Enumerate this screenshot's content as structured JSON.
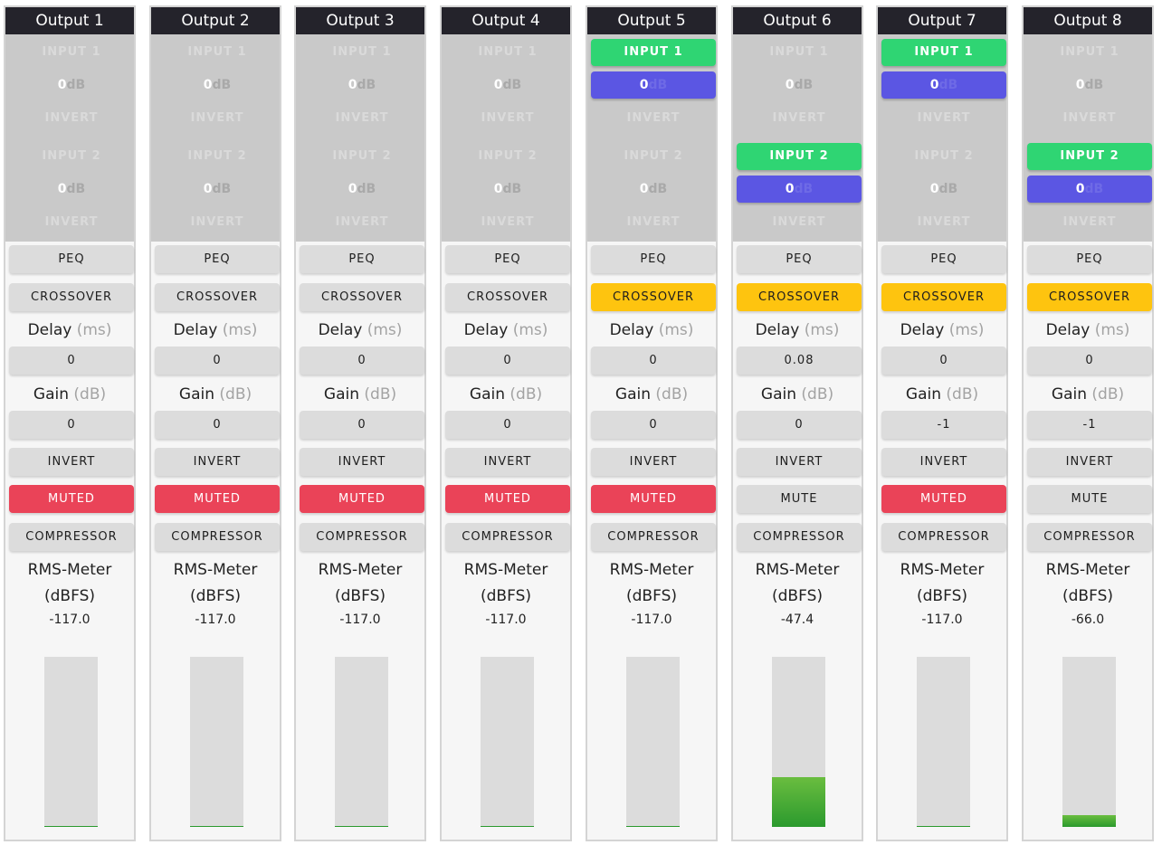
{
  "labels": {
    "input1": "INPUT 1",
    "input2": "INPUT 2",
    "level_unit": "dB",
    "invert": "INVERT",
    "peq": "PEQ",
    "crossover": "CROSSOVER",
    "delay": "Delay",
    "delay_unit": "(ms)",
    "gain": "Gain",
    "gain_unit": "(dB)",
    "compressor": "COMPRESSOR",
    "rms_meter": "RMS-Meter",
    "rms_unit": "(dBFS)"
  },
  "meter": {
    "min_db": -117.0,
    "max_db": 0.0
  },
  "colors": {
    "input_on": "#2fd573",
    "level_on": "#5b56e3",
    "crossover_on": "#fec40f",
    "muted": "#ea4358",
    "meter": "#3aa533",
    "title_bar": "#24232b"
  },
  "outputs": [
    {
      "title": "Output 1",
      "input1": {
        "enabled": false,
        "level": "0",
        "invert": false
      },
      "input2": {
        "enabled": false,
        "level": "0",
        "invert": false
      },
      "crossover_active": false,
      "delay": "0",
      "gain": "0",
      "muted": true,
      "mute_label": "MUTED",
      "rms": "-117.0",
      "meter_level": 0.0
    },
    {
      "title": "Output 2",
      "input1": {
        "enabled": false,
        "level": "0",
        "invert": false
      },
      "input2": {
        "enabled": false,
        "level": "0",
        "invert": false
      },
      "crossover_active": false,
      "delay": "0",
      "gain": "0",
      "muted": true,
      "mute_label": "MUTED",
      "rms": "-117.0",
      "meter_level": 0.0
    },
    {
      "title": "Output 3",
      "input1": {
        "enabled": false,
        "level": "0",
        "invert": false
      },
      "input2": {
        "enabled": false,
        "level": "0",
        "invert": false
      },
      "crossover_active": false,
      "delay": "0",
      "gain": "0",
      "muted": true,
      "mute_label": "MUTED",
      "rms": "-117.0",
      "meter_level": 0.0
    },
    {
      "title": "Output 4",
      "input1": {
        "enabled": false,
        "level": "0",
        "invert": false
      },
      "input2": {
        "enabled": false,
        "level": "0",
        "invert": false
      },
      "crossover_active": false,
      "delay": "0",
      "gain": "0",
      "muted": true,
      "mute_label": "MUTED",
      "rms": "-117.0",
      "meter_level": 0.0
    },
    {
      "title": "Output 5",
      "input1": {
        "enabled": true,
        "level": "0",
        "invert": false
      },
      "input2": {
        "enabled": false,
        "level": "0",
        "invert": false
      },
      "crossover_active": true,
      "delay": "0",
      "gain": "0",
      "muted": true,
      "mute_label": "MUTED",
      "rms": "-117.0",
      "meter_level": 0.0
    },
    {
      "title": "Output 6",
      "input1": {
        "enabled": false,
        "level": "0",
        "invert": false
      },
      "input2": {
        "enabled": true,
        "level": "0",
        "invert": false
      },
      "crossover_active": true,
      "delay": "0.08",
      "gain": "0",
      "muted": false,
      "mute_label": "MUTE",
      "rms": "-47.4",
      "meter_level": 0.29
    },
    {
      "title": "Output 7",
      "input1": {
        "enabled": true,
        "level": "0",
        "invert": false
      },
      "input2": {
        "enabled": false,
        "level": "0",
        "invert": false
      },
      "crossover_active": true,
      "delay": "0",
      "gain": "-1",
      "muted": true,
      "mute_label": "MUTED",
      "rms": "-117.0",
      "meter_level": 0.0
    },
    {
      "title": "Output 8",
      "input1": {
        "enabled": false,
        "level": "0",
        "invert": false
      },
      "input2": {
        "enabled": true,
        "level": "0",
        "invert": false
      },
      "crossover_active": true,
      "delay": "0",
      "gain": "-1",
      "muted": false,
      "mute_label": "MUTE",
      "rms": "-66.0",
      "meter_level": 0.07
    }
  ]
}
